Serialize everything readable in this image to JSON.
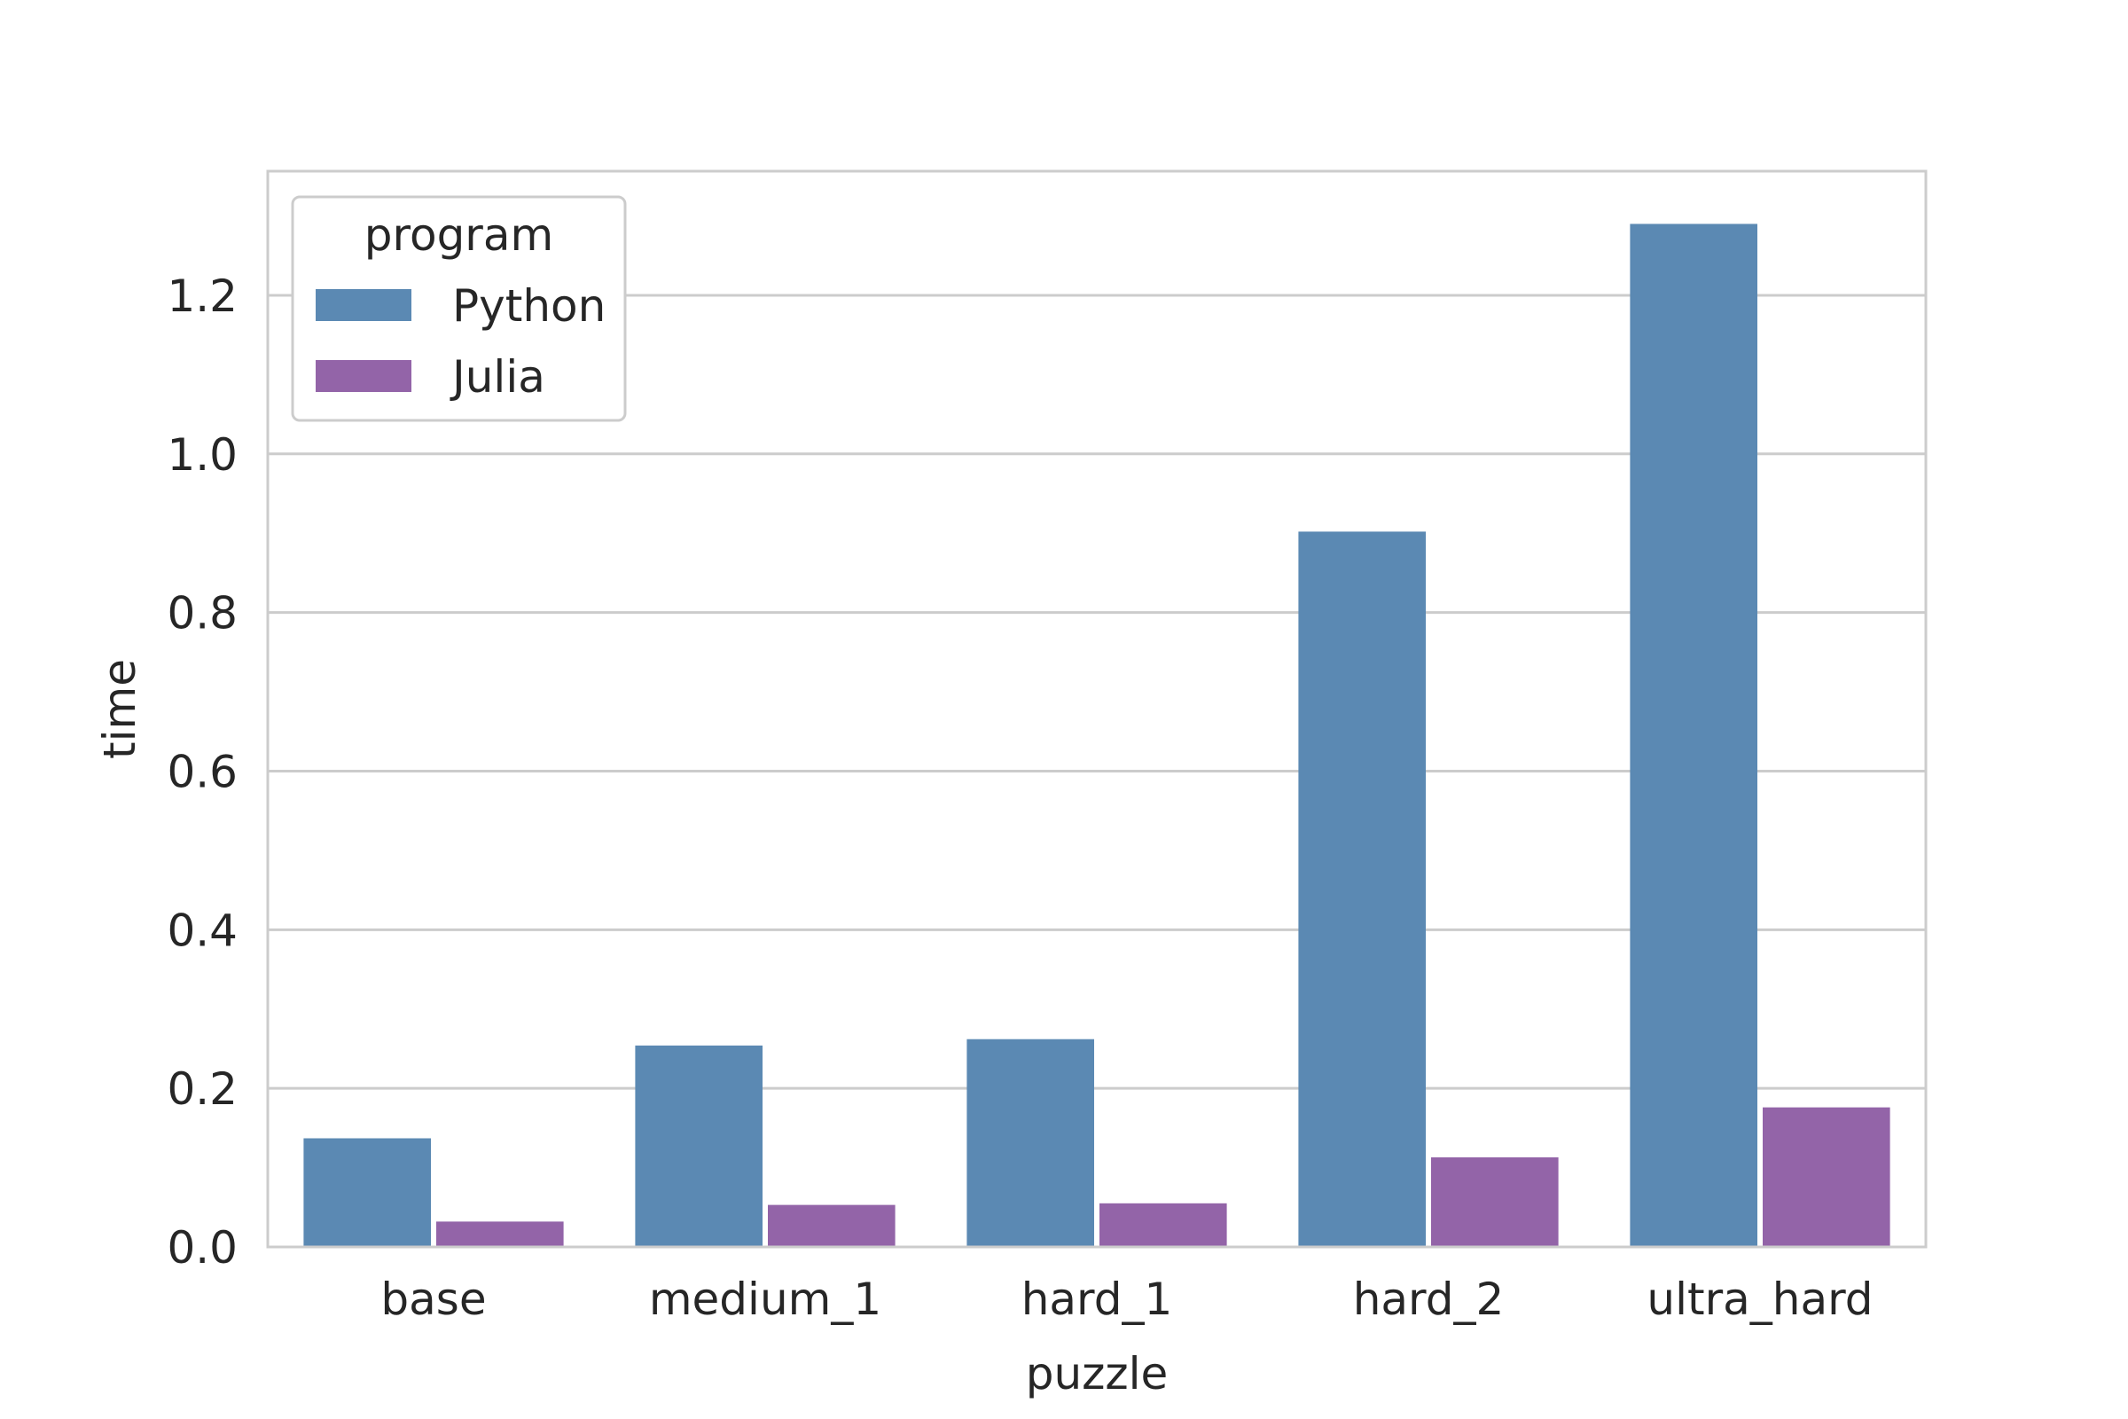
{
  "chart_data": {
    "type": "bar",
    "categories": [
      "base",
      "medium_1",
      "hard_1",
      "hard_2",
      "ultra_hard"
    ],
    "series": [
      {
        "name": "Python",
        "values": [
          0.137,
          0.254,
          0.262,
          0.902,
          1.29
        ],
        "color": "#5b89b3"
      },
      {
        "name": "Julia",
        "values": [
          0.032,
          0.053,
          0.055,
          0.113,
          0.176
        ],
        "color": "#9364a8"
      }
    ],
    "title": "",
    "xlabel": "puzzle",
    "ylabel": "time",
    "ylim": [
      0,
      1.3565
    ],
    "yticks": [
      0.0,
      0.2,
      0.4,
      0.6,
      0.8,
      1.0,
      1.2
    ],
    "ytick_labels": [
      "0.0",
      "0.2",
      "0.4",
      "0.6",
      "0.8",
      "1.0",
      "1.2"
    ],
    "grid": "horizontal",
    "legend": {
      "title": "program",
      "placement": "top-left"
    },
    "axis_color": "#cccccc",
    "grid_color": "#cccccc"
  }
}
